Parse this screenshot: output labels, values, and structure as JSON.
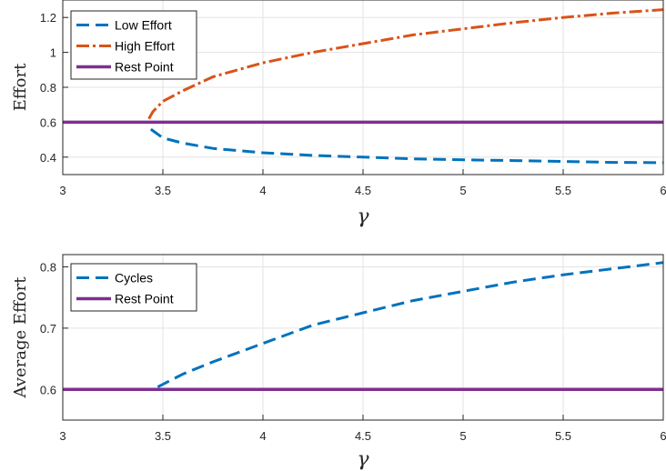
{
  "chart_data": [
    {
      "type": "line",
      "title": "",
      "xlabel": "γ",
      "ylabel": "Effort",
      "xlim": [
        3,
        6
      ],
      "ylim": [
        0.3,
        1.3
      ],
      "xticks": [
        3,
        3.5,
        4,
        4.5,
        5,
        5.5,
        6
      ],
      "xtick_labels": [
        "3",
        "3.5",
        "4",
        "4.5",
        "5",
        "5.5",
        "6"
      ],
      "yticks": [
        0.4,
        0.6,
        0.8,
        1.0,
        1.2
      ],
      "ytick_labels": [
        "0.4",
        "0.6",
        "0.8",
        "1",
        "1.2"
      ],
      "grid": true,
      "legend_position": "top-left",
      "series": [
        {
          "name": "Low Effort",
          "color": "#0072BD",
          "style": "dashed",
          "x": [
            3.44,
            3.5,
            3.6,
            3.75,
            4.0,
            4.25,
            4.5,
            4.75,
            5.0,
            5.25,
            5.5,
            5.75,
            6.0
          ],
          "y": [
            0.56,
            0.51,
            0.48,
            0.45,
            0.425,
            0.41,
            0.4,
            0.39,
            0.385,
            0.38,
            0.375,
            0.37,
            0.368
          ]
        },
        {
          "name": "High Effort",
          "color": "#D95319",
          "style": "dashdot",
          "x": [
            3.43,
            3.45,
            3.5,
            3.6,
            3.75,
            4.0,
            4.25,
            4.5,
            4.75,
            5.0,
            5.25,
            5.5,
            5.75,
            6.0
          ],
          "y": [
            0.62,
            0.66,
            0.72,
            0.78,
            0.86,
            0.94,
            1.0,
            1.05,
            1.1,
            1.135,
            1.17,
            1.2,
            1.225,
            1.245
          ]
        },
        {
          "name": "Rest Point",
          "color": "#7E2F8E",
          "style": "solid",
          "x": [
            3.0,
            6.0
          ],
          "y": [
            0.6,
            0.6
          ]
        }
      ]
    },
    {
      "type": "line",
      "title": "",
      "xlabel": "γ",
      "ylabel": "Average Effort",
      "xlim": [
        3,
        6
      ],
      "ylim": [
        0.55,
        0.82
      ],
      "xticks": [
        3,
        3.5,
        4,
        4.5,
        5,
        5.5,
        6
      ],
      "xtick_labels": [
        "3",
        "3.5",
        "4",
        "4.5",
        "5",
        "5.5",
        "6"
      ],
      "yticks": [
        0.6,
        0.7,
        0.8
      ],
      "ytick_labels": [
        "0.6",
        "0.7",
        "0.8"
      ],
      "grid": true,
      "legend_position": "top-left",
      "series": [
        {
          "name": "Cycles",
          "color": "#0072BD",
          "style": "dashed",
          "x": [
            3.0,
            3.45,
            3.6,
            3.75,
            4.0,
            4.25,
            4.5,
            4.75,
            5.0,
            5.25,
            5.5,
            5.75,
            6.0
          ],
          "y": [
            0.6,
            0.6,
            0.625,
            0.645,
            0.675,
            0.705,
            0.725,
            0.745,
            0.76,
            0.775,
            0.787,
            0.797,
            0.807
          ]
        },
        {
          "name": "Rest Point",
          "color": "#7E2F8E",
          "style": "solid",
          "x": [
            3.0,
            6.0
          ],
          "y": [
            0.6,
            0.6
          ]
        }
      ]
    }
  ]
}
